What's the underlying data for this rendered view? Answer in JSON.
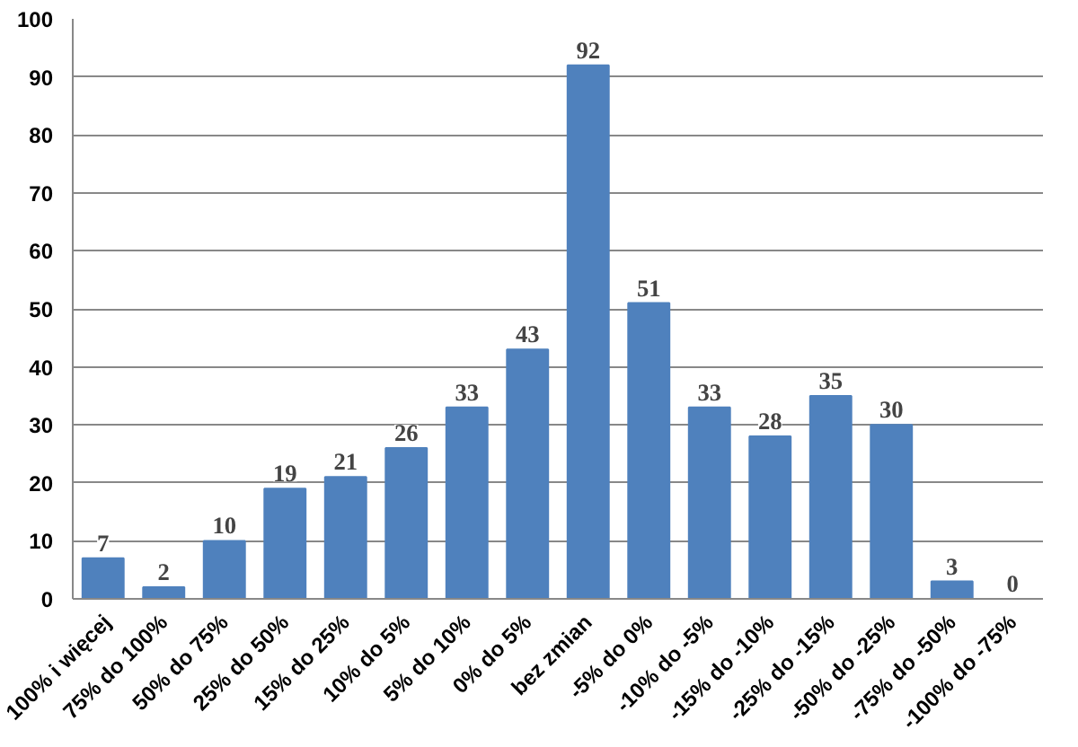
{
  "chart_data": {
    "type": "bar",
    "categories": [
      "100% i więcej",
      "75% do 100%",
      "50% do 75%",
      "25% do 50%",
      "15% do 25%",
      "10% do 5%",
      "5% do 10%",
      "0% do 5%",
      "bez zmian",
      "-5% do 0%",
      "-10% do -5%",
      "-15% do -10%",
      "-25% do -15%",
      "-50% do -25%",
      "-75% do -50%",
      "-100% do -75%"
    ],
    "values": [
      7,
      2,
      10,
      19,
      21,
      26,
      33,
      43,
      92,
      51,
      33,
      28,
      35,
      30,
      3,
      0
    ],
    "color": "#4f81bd",
    "ylim": [
      0,
      100
    ],
    "yticks": [
      0,
      10,
      20,
      30,
      40,
      50,
      60,
      70,
      80,
      90,
      100
    ],
    "grid": "y",
    "data_labels": true
  }
}
